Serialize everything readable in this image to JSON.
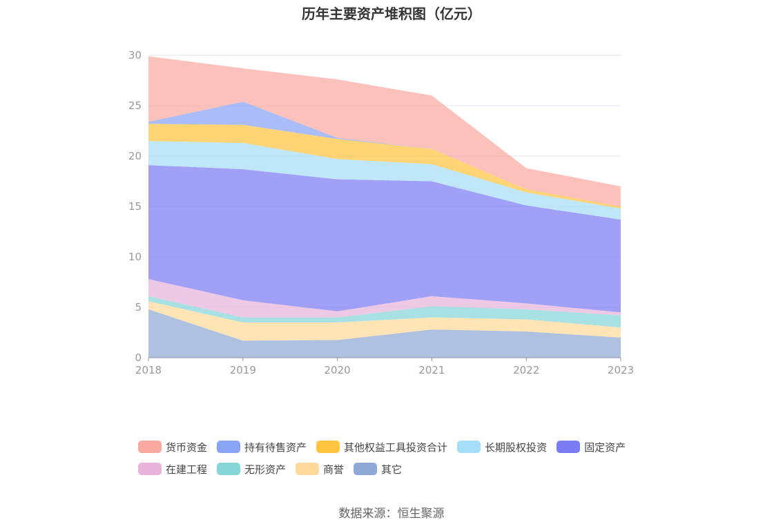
{
  "chart_data": {
    "type": "area",
    "stacked": true,
    "title": "历年主要资产堆积图（亿元）",
    "categories": [
      "2018",
      "2019",
      "2020",
      "2021",
      "2022",
      "2023"
    ],
    "ylim": [
      0,
      30
    ],
    "yticks": [
      0,
      5,
      10,
      15,
      20,
      25,
      30
    ],
    "grid": true,
    "legend_position": "bottom",
    "series": [
      {
        "name": "其它",
        "color": "#8fa9d6",
        "values": [
          4.8,
          1.7,
          1.75,
          2.8,
          2.6,
          2.0
        ]
      },
      {
        "name": "商誉",
        "color": "#ffd99a",
        "values": [
          0.8,
          1.8,
          1.75,
          1.2,
          1.2,
          1.0
        ]
      },
      {
        "name": "无形资产",
        "color": "#86d6d8",
        "values": [
          0.5,
          0.5,
          0.5,
          1.1,
          1.0,
          1.2
        ]
      },
      {
        "name": "在建工程",
        "color": "#e8b4db",
        "values": [
          1.7,
          1.7,
          0.6,
          1.0,
          0.6,
          0.3
        ]
      },
      {
        "name": "固定资产",
        "color": "#7b7cf4",
        "values": [
          11.3,
          13.0,
          13.1,
          11.4,
          9.7,
          9.2
        ]
      },
      {
        "name": "长期股权投资",
        "color": "#a7def7",
        "values": [
          2.4,
          2.6,
          2.0,
          1.7,
          1.3,
          1.1
        ]
      },
      {
        "name": "其他权益工具投资合计",
        "color": "#ffc440",
        "values": [
          1.7,
          1.8,
          2.0,
          1.5,
          0.3,
          0.2
        ]
      },
      {
        "name": "持有待售资产",
        "color": "#8aa4f5",
        "values": [
          0.2,
          2.3,
          0.1,
          0.0,
          0.0,
          0.0
        ]
      },
      {
        "name": "货币资金",
        "color": "#f9a99f",
        "values": [
          6.5,
          3.3,
          5.8,
          5.3,
          2.1,
          2.0
        ]
      }
    ],
    "legend_order": [
      "货币资金",
      "持有待售资产",
      "其他权益工具投资合计",
      "长期股权投资",
      "固定资产",
      "在建工程",
      "无形资产",
      "商誉",
      "其它"
    ]
  },
  "source_text": "数据来源：恒生聚源"
}
